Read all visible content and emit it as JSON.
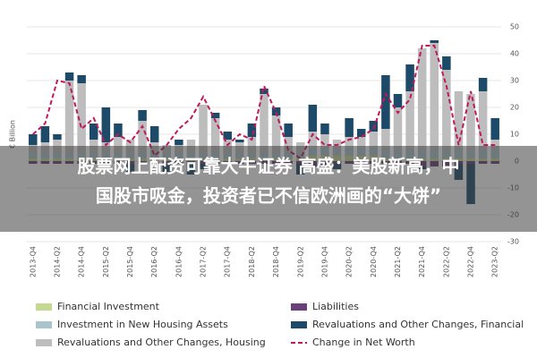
{
  "chart_data": {
    "type": "bar",
    "y_label": "€ Billion",
    "categories": [
      "2013-Q4",
      null,
      "2014-Q2",
      null,
      "2014-Q4",
      null,
      "2015-Q2",
      null,
      "2015-Q4",
      null,
      "2016-Q2",
      null,
      "2016-Q4",
      null,
      "2017-Q2",
      null,
      "2017-Q4",
      null,
      "2018-Q2",
      null,
      "2018-Q4",
      null,
      "2019-Q2",
      null,
      "2019-Q4",
      null,
      "2020-Q2",
      null,
      "2020-Q4",
      null,
      "2021-Q2",
      null,
      "2021-Q4",
      null,
      "2022-Q2",
      null,
      "2022-Q4",
      null,
      "2023-Q2"
    ],
    "ylim": [
      -30,
      50
    ],
    "yticks": [
      50,
      40,
      30,
      20,
      10,
      0,
      -10,
      -20,
      -30
    ],
    "grid": true,
    "series": [
      {
        "name": "Financial Investment",
        "color": "#c5d88f",
        "values": [
          1,
          1,
          1,
          1,
          1,
          1,
          1,
          1,
          1,
          1,
          1,
          1,
          1,
          1,
          1,
          1,
          1,
          1,
          1,
          1,
          1,
          1,
          1,
          2,
          2,
          2,
          2,
          2,
          2,
          1,
          1,
          1,
          1,
          1,
          1,
          1,
          1,
          1,
          1
        ]
      },
      {
        "name": "Investment in New Housing Assets",
        "color": "#a9c4cc",
        "values": [
          2,
          2,
          2,
          2,
          2,
          2,
          2,
          2,
          2,
          2,
          2,
          2,
          2,
          2,
          2,
          2,
          2,
          2,
          2,
          2,
          2,
          2,
          2,
          3,
          3,
          2,
          3,
          3,
          3,
          3,
          3,
          3,
          3,
          3,
          3,
          3,
          3,
          3,
          3
        ]
      },
      {
        "name": "Revaluations and Other Changes, Housing",
        "color": "#bdbdbd",
        "values": [
          3,
          4,
          5,
          27,
          26,
          5,
          4,
          6,
          5,
          12,
          4,
          3,
          3,
          5,
          18,
          13,
          5,
          4,
          6,
          22,
          14,
          6,
          4,
          6,
          5,
          4,
          4,
          4,
          6,
          8,
          16,
          22,
          38,
          40,
          30,
          22,
          21,
          22,
          4
        ]
      },
      {
        "name": "Liabilities",
        "color": "#6b3f7a",
        "values": [
          -1,
          -1,
          -1,
          -1,
          -1,
          -1,
          -1,
          -1,
          -1,
          -1,
          -1,
          -1,
          -1,
          -1,
          -1,
          -1,
          -1,
          -1,
          -1,
          -1,
          -1,
          -1,
          -1,
          -2,
          -2,
          -1,
          -1,
          -1,
          -1,
          -1,
          -1,
          -1,
          -2,
          -2,
          -2,
          -1,
          -1,
          -1,
          -1
        ]
      },
      {
        "name": "Revaluations and Other Changes, Financial",
        "color": "#1d4a68",
        "values": [
          4,
          6,
          2,
          3,
          3,
          6,
          13,
          5,
          -3,
          4,
          6,
          -3,
          2,
          -4,
          -2,
          2,
          3,
          1,
          5,
          2,
          3,
          5,
          -4,
          10,
          4,
          -2,
          7,
          3,
          4,
          20,
          5,
          10,
          -1,
          1,
          5,
          -6,
          -15,
          5,
          8
        ]
      },
      {
        "name": "Change in Net Worth",
        "color": "#c2185b",
        "line": true,
        "values": [
          10,
          14,
          30,
          29,
          12,
          16,
          6,
          10,
          7,
          13,
          2,
          6,
          12,
          16,
          24,
          15,
          6,
          10,
          8,
          28,
          18,
          4,
          1,
          10,
          6,
          6,
          8,
          9,
          12,
          25,
          18,
          23,
          43,
          43,
          28,
          6,
          26,
          6,
          6
        ]
      }
    ]
  },
  "overlay": {
    "lines": [
      "股票网上配资可靠大牛证券 高盛：美股新高，中",
      "国股市吸金，投资者已不信欧洲画的“大饼”"
    ]
  }
}
